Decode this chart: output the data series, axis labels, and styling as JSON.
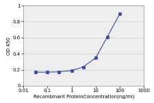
{
  "x": [
    0.031,
    0.1,
    0.3,
    1.0,
    3.0,
    10.0,
    30.0,
    100.0
  ],
  "y": [
    0.17,
    0.17,
    0.175,
    0.19,
    0.235,
    0.35,
    0.61,
    0.9
  ],
  "line_color": "#3344AA",
  "marker": "s",
  "marker_size": 2.5,
  "marker_facecolor": "#3344AA",
  "xlabel": "Recombinant ProteinConcentration(ng/ml)",
  "ylabel": "OD 450",
  "xlim": [
    0.01,
    1000
  ],
  "ylim": [
    0,
    1.0
  ],
  "yticks": [
    0,
    0.2,
    0.4,
    0.6,
    0.8,
    1.0
  ],
  "ytick_labels": [
    "0",
    "0.2",
    "0.4",
    "0.6",
    "0.8",
    "1"
  ],
  "xticks": [
    0.01,
    0.1,
    1,
    10,
    100,
    1000
  ],
  "xtick_labels": [
    "0.01",
    "0.1",
    "1",
    "10",
    "100",
    "1000"
  ],
  "grid_color": "#cccccc",
  "plot_bg_color": "#eeeeee",
  "axis_fontsize": 5.0,
  "tick_fontsize": 5.0,
  "linewidth": 0.8
}
